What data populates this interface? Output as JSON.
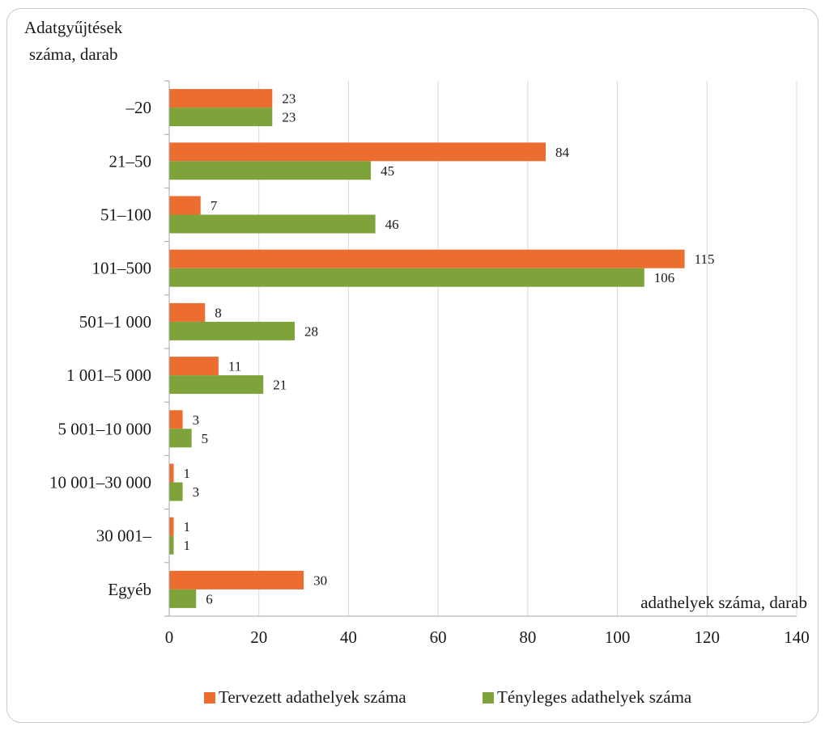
{
  "chart_data": {
    "type": "bar",
    "orientation": "horizontal",
    "ylabel_lines": [
      "Adatgyűjtések",
      "száma, darab"
    ],
    "xlabel": "adathelyek száma, darab",
    "categories": [
      "–20",
      "21–50",
      "51–100",
      "101–500",
      "501–1 000",
      "1 001–5 000",
      "5 001–10 000",
      "10 001–30 000",
      "30 001–",
      "Egyéb"
    ],
    "series": [
      {
        "name": "Tervezett adathelyek száma",
        "color": "#eb6d2f",
        "values": [
          23,
          84,
          7,
          115,
          8,
          11,
          3,
          1,
          1,
          30
        ]
      },
      {
        "name": "Tényleges adathelyek száma",
        "color": "#7ea33b",
        "values": [
          23,
          45,
          46,
          106,
          28,
          21,
          5,
          3,
          1,
          6
        ]
      }
    ],
    "xlim": [
      0,
      140
    ],
    "xticks": [
      0,
      20,
      40,
      60,
      80,
      100,
      120,
      140
    ],
    "grid": "vertical",
    "legend_position": "bottom"
  }
}
